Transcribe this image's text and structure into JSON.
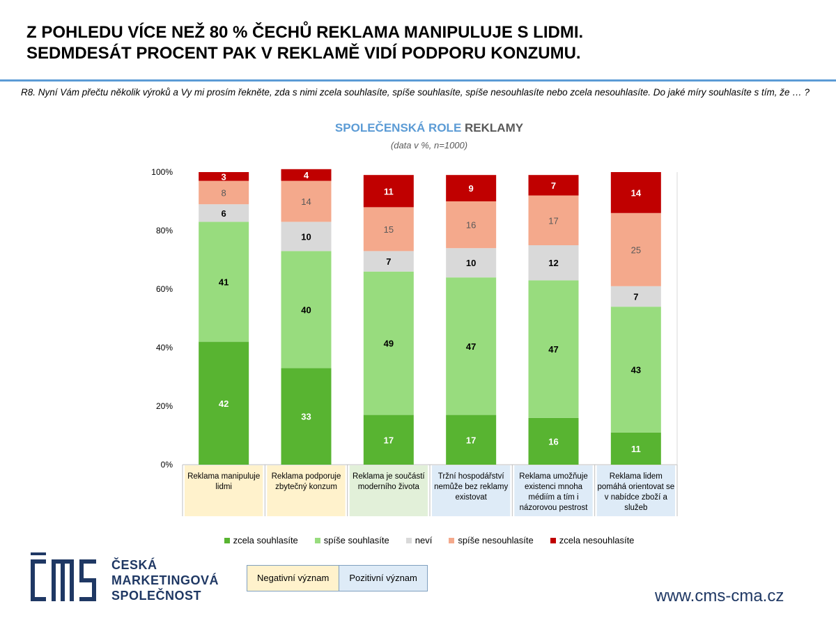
{
  "header": {
    "line1": "Z POHLEDU VÍCE NEŽ 80 % ČECHŮ REKLAMA MANIPULUJE S LIDMI.",
    "line2": "SEDMDESÁT PROCENT PAK V REKLAMĚ VIDÍ PODPORU KONZUMU."
  },
  "question": "R8. Nyní Vám přečtu několik výroků a Vy mi prosím řekněte, zda s nimi zcela souhlasíte, spíše souhlasíte, spíše nesouhlasíte nebo zcela nesouhlasíte. Do jaké míry souhlasíte s tím, že … ?",
  "chart_title_part1": "SPOLEČENSKÁ ROLE",
  "chart_title_part2": "REKLAMY",
  "chart_subtitle": "(data v %, n=1000)",
  "colors": {
    "category_negative": "#fff2cc",
    "category_positive_light": "#e2f0d9",
    "category_positive": "#deebf7"
  },
  "chart_data": {
    "type": "bar",
    "stacked": true,
    "ylim": [
      0,
      100
    ],
    "yticks": [
      "0%",
      "20%",
      "40%",
      "60%",
      "80%",
      "100%"
    ],
    "categories": [
      "Reklama manipuluje lidmi",
      "Reklama podporuje zbytečný konzum",
      "Reklama je součástí moderního života",
      "Tržní hospodářství nemůže bez reklamy existovat",
      "Reklama umožňuje existenci mnoha médiím a tím i názorovou pestrost",
      "Reklama lidem pomáhá orientovat se v nabídce zboží a služeb"
    ],
    "category_lines": [
      [
        "Reklama manipuluje",
        "lidmi"
      ],
      [
        "Reklama podporuje",
        "zbytečný konzum"
      ],
      [
        "Reklama je součástí",
        "moderního života"
      ],
      [
        "Tržní hospodářství",
        "nemůže bez reklamy",
        "existovat"
      ],
      [
        "Reklama umožňuje",
        "existenci mnoha",
        "médiím a tím i",
        "názorovou pestrost"
      ],
      [
        "Reklama lidem",
        "pomáhá orientovat se",
        "v nabídce zboží a",
        "služeb"
      ]
    ],
    "category_groups": [
      "negative",
      "negative",
      "positive_light",
      "positive",
      "positive",
      "positive"
    ],
    "series": [
      {
        "name": "zcela souhlasíte",
        "color": "#58b431",
        "label_color": "#ffffff",
        "values": [
          42,
          33,
          17,
          17,
          16,
          11
        ]
      },
      {
        "name": "spíše souhlasíte",
        "color": "#98dc7e",
        "label_color": "#000000",
        "values": [
          41,
          40,
          49,
          47,
          47,
          43
        ]
      },
      {
        "name": "neví",
        "color": "#d9d9d9",
        "label_color": "#000000",
        "values": [
          6,
          10,
          7,
          10,
          12,
          7
        ]
      },
      {
        "name": "spíše nesouhlasíte",
        "color": "#f4a98c",
        "label_color": "#595959",
        "values": [
          8,
          14,
          15,
          16,
          17,
          25
        ]
      },
      {
        "name": "zcela nesouhlasíte",
        "color": "#c00000",
        "label_color": "#ffffff",
        "values": [
          3,
          4,
          11,
          9,
          7,
          14
        ]
      }
    ]
  },
  "meaning_legend": {
    "negative": "Negativní význam",
    "positive": "Pozitivní význam"
  },
  "logo": {
    "mark": "CMS",
    "line1": "ČESKÁ",
    "line2": "MARKETINGOVÁ",
    "line3": "SPOLEČNOST"
  },
  "website": "www.cms-cma.cz"
}
